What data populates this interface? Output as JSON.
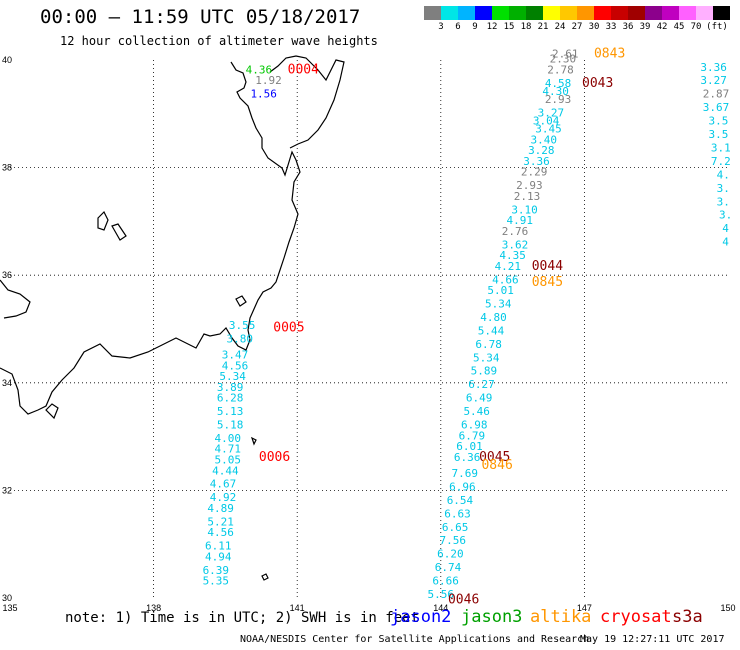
{
  "title": "00:00 – 11:59 UTC 05/18/2017",
  "subtitle": "12 hour collection of altimeter wave heights",
  "colorbar": {
    "colors": [
      "#7f7f7f",
      "#00e6e6",
      "#00b4ff",
      "#0000ff",
      "#00e000",
      "#00b000",
      "#008000",
      "#ffff00",
      "#ffc800",
      "#ff9600",
      "#ff0000",
      "#c80000",
      "#a00000",
      "#8c008c",
      "#c000c0",
      "#ff60ff",
      "#ffb0ff",
      "#000000"
    ],
    "labels": [
      "3",
      "6",
      "9",
      "12",
      "15",
      "18",
      "21",
      "24",
      "27",
      "30",
      "33",
      "36",
      "39",
      "42",
      "45",
      "70",
      "(ft)"
    ]
  },
  "axes": {
    "x_ticks": [
      "135",
      "138",
      "141",
      "144",
      "147",
      "150"
    ],
    "y_ticks": [
      "40",
      "38",
      "36",
      "34",
      "32",
      "30"
    ]
  },
  "notes": "note: 1) Time is in UTC; 2) SWH is in feet",
  "satellites": [
    {
      "name": "jason2",
      "color": "#0000ff"
    },
    {
      "name": "jason3",
      "color": "#00a000"
    },
    {
      "name": "altika",
      "color": "#ff9600"
    },
    {
      "name": "cryosat",
      "color": "#ff0000"
    },
    {
      "name": "s3a",
      "color": "#8b0000"
    }
  ],
  "credit": "NOAA/NESDIS Center for Satellite Applications and Research",
  "timestamp": "May 19 12:27:11 UTC 2017",
  "time_labels": [
    {
      "text": "0004",
      "color": "#ff0000",
      "lon": 140.8,
      "lat": 39.75
    },
    {
      "text": "0005",
      "color": "#ff0000",
      "lon": 140.5,
      "lat": 34.95
    },
    {
      "text": "0006",
      "color": "#ff0000",
      "lon": 140.2,
      "lat": 32.55
    },
    {
      "text": "0843",
      "color": "#ff9600",
      "lon": 147.2,
      "lat": 40.05
    },
    {
      "text": "0043",
      "color": "#8b0000",
      "lon": 146.95,
      "lat": 39.5
    },
    {
      "text": "0044",
      "color": "#8b0000",
      "lon": 145.9,
      "lat": 36.1
    },
    {
      "text": "0845",
      "color": "#ff9600",
      "lon": 145.9,
      "lat": 35.8
    },
    {
      "text": "0045",
      "color": "#8b0000",
      "lon": 144.8,
      "lat": 32.55
    },
    {
      "text": "0846",
      "color": "#ff9600",
      "lon": 144.85,
      "lat": 32.4
    },
    {
      "text": "0046",
      "color": "#8b0000",
      "lon": 144.15,
      "lat": 29.9
    }
  ],
  "wave_heights": [
    {
      "v": "4.36",
      "color": "#00c800",
      "lon": 140.2,
      "lat": 39.75
    },
    {
      "v": "1.92",
      "color": "#7f7f7f",
      "lon": 140.4,
      "lat": 39.55
    },
    {
      "v": "1.56",
      "color": "#0000ff",
      "lon": 140.3,
      "lat": 39.3
    },
    {
      "v": "3.55",
      "color": "#00c8e6",
      "lon": 139.85,
      "lat": 35.0
    },
    {
      "v": "3.80",
      "color": "#00c8e6",
      "lon": 139.8,
      "lat": 34.75
    },
    {
      "v": "3.47",
      "color": "#00c8e6",
      "lon": 139.7,
      "lat": 34.45
    },
    {
      "v": "4.56",
      "color": "#00c8e6",
      "lon": 139.7,
      "lat": 34.25
    },
    {
      "v": "5.34",
      "color": "#00c8e6",
      "lon": 139.65,
      "lat": 34.05
    },
    {
      "v": "3.89",
      "color": "#00c8e6",
      "lon": 139.6,
      "lat": 33.85
    },
    {
      "v": "6.28",
      "color": "#00c8e6",
      "lon": 139.6,
      "lat": 33.65
    },
    {
      "v": "5.13",
      "color": "#00c8e6",
      "lon": 139.6,
      "lat": 33.4
    },
    {
      "v": "5.18",
      "color": "#00c8e6",
      "lon": 139.6,
      "lat": 33.15
    },
    {
      "v": "4.00",
      "color": "#00c8e6",
      "lon": 139.55,
      "lat": 32.9
    },
    {
      "v": "4.71",
      "color": "#00c8e6",
      "lon": 139.55,
      "lat": 32.7
    },
    {
      "v": "5.05",
      "color": "#00c8e6",
      "lon": 139.55,
      "lat": 32.5
    },
    {
      "v": "4.44",
      "color": "#00c8e6",
      "lon": 139.5,
      "lat": 32.3
    },
    {
      "v": "4.67",
      "color": "#00c8e6",
      "lon": 139.45,
      "lat": 32.05
    },
    {
      "v": "4.92",
      "color": "#00c8e6",
      "lon": 139.45,
      "lat": 31.8
    },
    {
      "v": "4.89",
      "color": "#00c8e6",
      "lon": 139.4,
      "lat": 31.6
    },
    {
      "v": "5.21",
      "color": "#00c8e6",
      "lon": 139.4,
      "lat": 31.35
    },
    {
      "v": "4.56",
      "color": "#00c8e6",
      "lon": 139.4,
      "lat": 31.15
    },
    {
      "v": "6.11",
      "color": "#00c8e6",
      "lon": 139.35,
      "lat": 30.9
    },
    {
      "v": "4.94",
      "color": "#00c8e6",
      "lon": 139.35,
      "lat": 30.7
    },
    {
      "v": "6.39",
      "color": "#00c8e6",
      "lon": 139.3,
      "lat": 30.45
    },
    {
      "v": "5.35",
      "color": "#00c8e6",
      "lon": 139.3,
      "lat": 30.25
    },
    {
      "v": "2.61",
      "color": "#7f7f7f",
      "lon": 146.6,
      "lat": 40.05
    },
    {
      "v": "2.30",
      "color": "#7f7f7f",
      "lon": 146.55,
      "lat": 39.95
    },
    {
      "v": "2.78",
      "color": "#7f7f7f",
      "lon": 146.5,
      "lat": 39.75
    },
    {
      "v": "4.58",
      "color": "#00c8e6",
      "lon": 146.45,
      "lat": 39.5
    },
    {
      "v": "4.30",
      "color": "#00c8e6",
      "lon": 146.4,
      "lat": 39.35
    },
    {
      "v": "2.93",
      "color": "#7f7f7f",
      "lon": 146.45,
      "lat": 39.2
    },
    {
      "v": "3.27",
      "color": "#00c8e6",
      "lon": 146.3,
      "lat": 38.95
    },
    {
      "v": "3.04",
      "color": "#00c8e6",
      "lon": 146.2,
      "lat": 38.8
    },
    {
      "v": "3.45",
      "color": "#00c8e6",
      "lon": 146.25,
      "lat": 38.65
    },
    {
      "v": "3.40",
      "color": "#00c8e6",
      "lon": 146.15,
      "lat": 38.45
    },
    {
      "v": "3.28",
      "color": "#00c8e6",
      "lon": 146.1,
      "lat": 38.25
    },
    {
      "v": "3.36",
      "color": "#00c8e6",
      "lon": 146.0,
      "lat": 38.05
    },
    {
      "v": "2.29",
      "color": "#7f7f7f",
      "lon": 145.95,
      "lat": 37.85
    },
    {
      "v": "2.93",
      "color": "#7f7f7f",
      "lon": 145.85,
      "lat": 37.6
    },
    {
      "v": "2.13",
      "color": "#7f7f7f",
      "lon": 145.8,
      "lat": 37.4
    },
    {
      "v": "3.10",
      "color": "#00c8e6",
      "lon": 145.75,
      "lat": 37.15
    },
    {
      "v": "4.91",
      "color": "#00c8e6",
      "lon": 145.65,
      "lat": 36.95
    },
    {
      "v": "2.76",
      "color": "#7f7f7f",
      "lon": 145.55,
      "lat": 36.75
    },
    {
      "v": "3.62",
      "color": "#00c8e6",
      "lon": 145.55,
      "lat": 36.5
    },
    {
      "v": "4.35",
      "color": "#00c8e6",
      "lon": 145.5,
      "lat": 36.3
    },
    {
      "v": "4.21",
      "color": "#00c8e6",
      "lon": 145.4,
      "lat": 36.1
    },
    {
      "v": "4.66",
      "color": "#00c8e6",
      "lon": 145.35,
      "lat": 35.85
    },
    {
      "v": "5.01",
      "color": "#00c8e6",
      "lon": 145.25,
      "lat": 35.65
    },
    {
      "v": "5.34",
      "color": "#00c8e6",
      "lon": 145.2,
      "lat": 35.4
    },
    {
      "v": "4.80",
      "color": "#00c8e6",
      "lon": 145.1,
      "lat": 35.15
    },
    {
      "v": "5.44",
      "color": "#00c8e6",
      "lon": 145.05,
      "lat": 34.9
    },
    {
      "v": "6.78",
      "color": "#00c8e6",
      "lon": 145.0,
      "lat": 34.65
    },
    {
      "v": "5.34",
      "color": "#00c8e6",
      "lon": 144.95,
      "lat": 34.4
    },
    {
      "v": "5.89",
      "color": "#00c8e6",
      "lon": 144.9,
      "lat": 34.15
    },
    {
      "v": "6.27",
      "color": "#00c8e6",
      "lon": 144.85,
      "lat": 33.9
    },
    {
      "v": "6.49",
      "color": "#00c8e6",
      "lon": 144.8,
      "lat": 33.65
    },
    {
      "v": "5.46",
      "color": "#00c8e6",
      "lon": 144.75,
      "lat": 33.4
    },
    {
      "v": "6.98",
      "color": "#00c8e6",
      "lon": 144.7,
      "lat": 33.15
    },
    {
      "v": "6.79",
      "color": "#00c8e6",
      "lon": 144.65,
      "lat": 32.95
    },
    {
      "v": "6.01",
      "color": "#00c8e6",
      "lon": 144.6,
      "lat": 32.75
    },
    {
      "v": "6.36",
      "color": "#00c8e6",
      "lon": 144.55,
      "lat": 32.55
    },
    {
      "v": "7.69",
      "color": "#00c8e6",
      "lon": 144.5,
      "lat": 32.25
    },
    {
      "v": "6.96",
      "color": "#00c8e6",
      "lon": 144.45,
      "lat": 32.0
    },
    {
      "v": "6.54",
      "color": "#00c8e6",
      "lon": 144.4,
      "lat": 31.75
    },
    {
      "v": "6.63",
      "color": "#00c8e6",
      "lon": 144.35,
      "lat": 31.5
    },
    {
      "v": "6.65",
      "color": "#00c8e6",
      "lon": 144.3,
      "lat": 31.25
    },
    {
      "v": "7.56",
      "color": "#00c8e6",
      "lon": 144.25,
      "lat": 31.0
    },
    {
      "v": "6.20",
      "color": "#00c8e6",
      "lon": 144.2,
      "lat": 30.75
    },
    {
      "v": "6.74",
      "color": "#00c8e6",
      "lon": 144.15,
      "lat": 30.5
    },
    {
      "v": "6.66",
      "color": "#00c8e6",
      "lon": 144.1,
      "lat": 30.25
    },
    {
      "v": "5.56",
      "color": "#00c8e6",
      "lon": 144.0,
      "lat": 30.0
    },
    {
      "v": "3.36",
      "color": "#00c8e6",
      "lon": 149.7,
      "lat": 39.8
    },
    {
      "v": "3.27",
      "color": "#00c8e6",
      "lon": 149.7,
      "lat": 39.55
    },
    {
      "v": "2.87",
      "color": "#7f7f7f",
      "lon": 149.75,
      "lat": 39.3
    },
    {
      "v": "3.67",
      "color": "#00c8e6",
      "lon": 149.75,
      "lat": 39.05
    },
    {
      "v": "3.5",
      "color": "#00c8e6",
      "lon": 149.8,
      "lat": 38.8
    },
    {
      "v": "3.5",
      "color": "#00c8e6",
      "lon": 149.8,
      "lat": 38.55
    },
    {
      "v": "3.1",
      "color": "#00c8e6",
      "lon": 149.85,
      "lat": 38.3
    },
    {
      "v": "7.2",
      "color": "#00c8e6",
      "lon": 149.85,
      "lat": 38.05
    },
    {
      "v": "4.",
      "color": "#00c8e6",
      "lon": 149.9,
      "lat": 37.8
    },
    {
      "v": "3.",
      "color": "#00c8e6",
      "lon": 149.9,
      "lat": 37.55
    },
    {
      "v": "3.",
      "color": "#00c8e6",
      "lon": 149.9,
      "lat": 37.3
    },
    {
      "v": "3.",
      "color": "#00c8e6",
      "lon": 149.95,
      "lat": 37.05
    },
    {
      "v": "4",
      "color": "#00c8e6",
      "lon": 149.95,
      "lat": 36.8
    },
    {
      "v": "4",
      "color": "#00c8e6",
      "lon": 149.95,
      "lat": 36.55
    }
  ]
}
